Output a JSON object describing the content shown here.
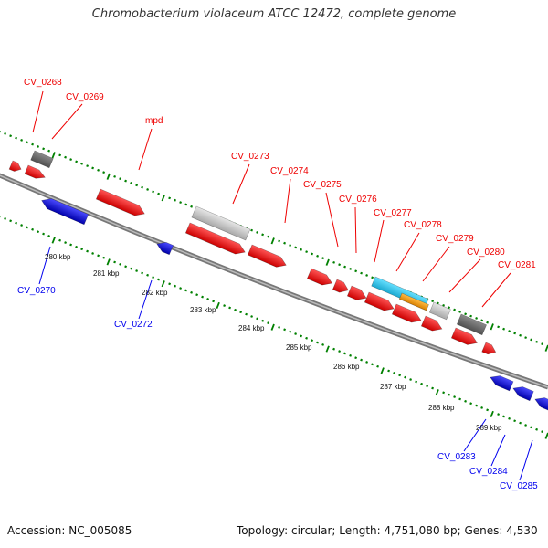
{
  "title": "Chromobacterium violaceum ATCC 12472, complete genome",
  "footer": {
    "accession": "Accession: NC_005085",
    "info": "Topology: circular; Length: 4,751,080 bp; Genes: 4,530"
  },
  "colors": {
    "forward_strand": "#ff0000",
    "reverse_strand": "#0000ee",
    "backbone": "#888888",
    "tick": "#008000",
    "rna_light": "#c8c8c8",
    "rna_dark": "#707070",
    "cyan_feature": "#33ccee",
    "orange_feature": "#f0a020"
  },
  "kbp_labels": [
    "280 kbp",
    "281 kbp",
    "282 kbp",
    "283 kbp",
    "284 kbp",
    "285 kbp",
    "286 kbp",
    "287 kbp",
    "288 kbp",
    "289 kbp"
  ],
  "gene_labels": {
    "forward": [
      "CV_0268",
      "CV_0269",
      "mpd",
      "CV_0273",
      "CV_0274",
      "CV_0275",
      "CV_0276",
      "CV_0277",
      "CV_0278",
      "CV_0279",
      "CV_0280",
      "CV_0281"
    ],
    "reverse": [
      "CV_0270",
      "CV_0272",
      "CV_0283",
      "CV_0284",
      "CV_0285"
    ]
  }
}
